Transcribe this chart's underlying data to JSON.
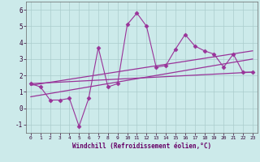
{
  "xlabel": "Windchill (Refroidissement éolien,°C)",
  "ylabel": "",
  "xlim": [
    -0.5,
    23.5
  ],
  "ylim": [
    -1.5,
    6.5
  ],
  "yticks": [
    -1,
    0,
    1,
    2,
    3,
    4,
    5,
    6
  ],
  "xticks": [
    0,
    1,
    2,
    3,
    4,
    5,
    6,
    7,
    8,
    9,
    10,
    11,
    12,
    13,
    14,
    15,
    16,
    17,
    18,
    19,
    20,
    21,
    22,
    23
  ],
  "bg_color": "#cceaea",
  "line_color": "#993399",
  "grid_color": "#aacccc",
  "data_x": [
    0,
    1,
    2,
    3,
    4,
    5,
    6,
    7,
    8,
    9,
    10,
    11,
    12,
    13,
    14,
    15,
    16,
    17,
    18,
    19,
    20,
    21,
    22,
    23
  ],
  "data_y": [
    1.5,
    1.3,
    0.5,
    0.5,
    0.6,
    -1.1,
    0.6,
    3.7,
    1.3,
    1.5,
    5.1,
    5.8,
    5.0,
    2.5,
    2.6,
    3.6,
    4.5,
    3.8,
    3.5,
    3.3,
    2.5,
    3.3,
    2.2,
    2.2
  ],
  "trend1_x": [
    0,
    23
  ],
  "trend1_y": [
    1.5,
    2.2
  ],
  "trend2_x": [
    0,
    23
  ],
  "trend2_y": [
    0.7,
    3.0
  ],
  "trend3_x": [
    0,
    23
  ],
  "trend3_y": [
    1.4,
    3.5
  ]
}
